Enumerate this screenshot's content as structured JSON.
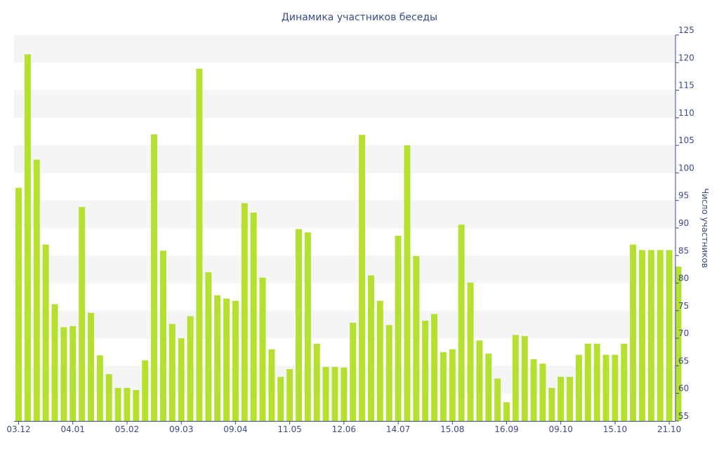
{
  "chart_data": {
    "type": "bar",
    "title": "Динамика участников беседы",
    "ylabel": "Число участников",
    "ylim": [
      55,
      125
    ],
    "yticks": [
      55,
      60,
      65,
      70,
      75,
      80,
      85,
      90,
      95,
      100,
      105,
      110,
      115,
      120,
      125
    ],
    "y_axis_position": "right",
    "grid": "alternating horizontal bands",
    "bar_color": "#b5e02f",
    "band_color": "#f5f5f5",
    "text_color": "#3b4a8a",
    "x_tick_labels": [
      {
        "index": 0,
        "label": "03.12"
      },
      {
        "index": 6,
        "label": "04.01"
      },
      {
        "index": 12,
        "label": "05.02"
      },
      {
        "index": 18,
        "label": "09.03"
      },
      {
        "index": 24,
        "label": "09.04"
      },
      {
        "index": 30,
        "label": "11.05"
      },
      {
        "index": 36,
        "label": "12.06"
      },
      {
        "index": 42,
        "label": "14.07"
      },
      {
        "index": 48,
        "label": "15.08"
      },
      {
        "index": 54,
        "label": "16.09"
      },
      {
        "index": 60,
        "label": "09.10"
      },
      {
        "index": 66,
        "label": "15.10"
      },
      {
        "index": 72,
        "label": "21.10"
      }
    ],
    "values": [
      97.3,
      121.5,
      102.4,
      87.0,
      76.2,
      72.0,
      72.2,
      93.8,
      74.6,
      66.9,
      63.5,
      61.0,
      61.0,
      60.6,
      66.0,
      107.0,
      85.9,
      72.6,
      70.0,
      74.0,
      118.9,
      82.0,
      77.8,
      77.2,
      76.8,
      94.5,
      92.8,
      81.0,
      68.0,
      63.0,
      64.4,
      89.8,
      89.2,
      69.0,
      64.8,
      64.8,
      64.7,
      72.8,
      106.9,
      81.4,
      76.8,
      72.4,
      88.6,
      105.0,
      84.9,
      73.2,
      74.4,
      67.5,
      68.0,
      90.6,
      80.1,
      69.6,
      67.2,
      62.7,
      58.4,
      70.6,
      70.4,
      66.2,
      65.4,
      61.0,
      63.0,
      63.0,
      67.0,
      69.0,
      69.0,
      67.0,
      67.0,
      69.0,
      87.0,
      86.0,
      86.0,
      86.0,
      86.0,
      83.0
    ]
  }
}
